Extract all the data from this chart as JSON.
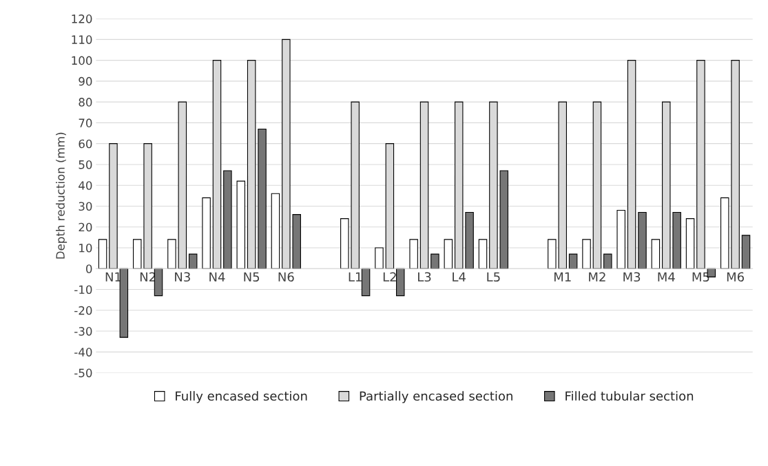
{
  "chart_data": {
    "type": "bar",
    "ylabel": "Depth reduction (mm)",
    "categories": [
      "N1",
      "N2",
      "N3",
      "N4",
      "N5",
      "N6",
      null,
      "L1",
      "L2",
      "L3",
      "L4",
      "L5",
      null,
      "M1",
      "M2",
      "M3",
      "M4",
      "M5",
      "M6"
    ],
    "series": [
      {
        "name": "Fully encased section",
        "color": "#ffffff",
        "values": [
          14,
          14,
          14,
          34,
          42,
          36,
          null,
          24,
          10,
          14,
          14,
          14,
          null,
          14,
          14,
          28,
          14,
          24,
          34
        ]
      },
      {
        "name": "Partially encased section",
        "color": "#d9d9d9",
        "values": [
          60,
          60,
          80,
          100,
          100,
          110,
          null,
          80,
          60,
          80,
          80,
          80,
          null,
          80,
          80,
          100,
          80,
          100,
          100
        ]
      },
      {
        "name": "Filled tubular section",
        "color": "#767676",
        "values": [
          -33,
          -13,
          7,
          47,
          67,
          26,
          null,
          -13,
          -13,
          7,
          27,
          47,
          null,
          7,
          7,
          27,
          27,
          -4,
          16
        ]
      }
    ],
    "ylim": [
      -50,
      120
    ],
    "yticks": [
      -50,
      -40,
      -30,
      -20,
      -10,
      0,
      10,
      20,
      30,
      40,
      50,
      60,
      70,
      80,
      90,
      100,
      110,
      120
    ],
    "grid": "y",
    "legend": "bottom"
  }
}
